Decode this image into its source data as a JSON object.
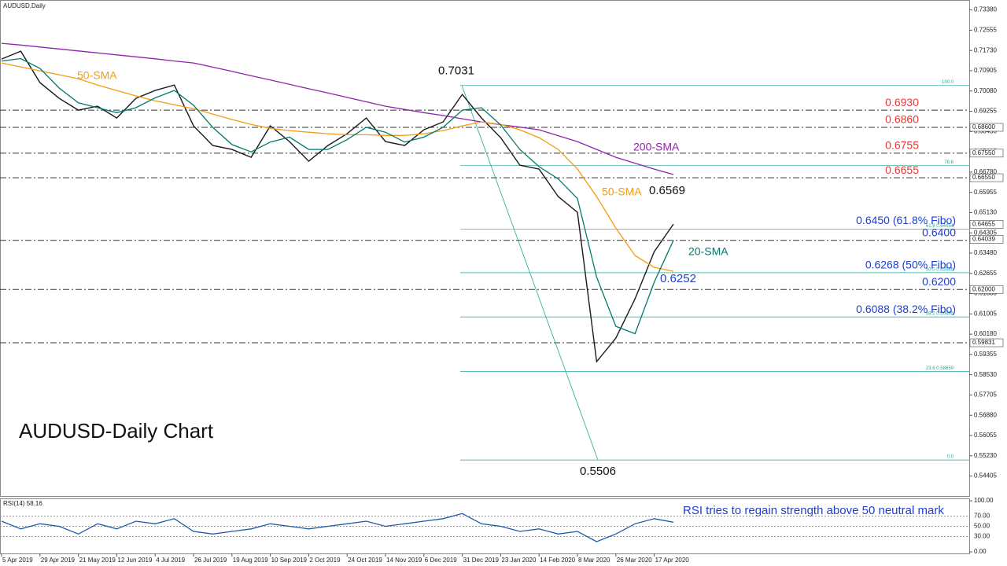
{
  "chart_data": [
    {
      "type": "line",
      "title": "AUDUSD,Daily",
      "subtitle": "AUDUSD-Daily Chart",
      "categories": [
        "5 Apr 2019",
        null,
        "29 Apr 2019",
        null,
        "21 May 2019",
        null,
        "12 Jun 2019",
        null,
        "4 Jul 2019",
        null,
        "26 Jul 2019",
        null,
        "19 Aug 2019",
        null,
        "10 Sep 2019",
        null,
        "2 Oct 2019",
        null,
        "24 Oct 2019",
        null,
        "14 Nov 2019",
        null,
        "6 Dec 2019",
        null,
        "31 Dec 2019",
        null,
        "23 Jan 2020",
        null,
        "14 Feb 2020",
        null,
        "8 Mar 2020",
        null,
        "26 Mar 2020",
        null,
        "17 Apr 2020",
        null
      ],
      "series": [
        {
          "color": "#1a1a1a",
          "values": [
            0.7138,
            0.717,
            0.7042,
            0.6978,
            0.693,
            0.6946,
            0.6898,
            0.6978,
            0.701,
            0.7032,
            0.6866,
            0.6786,
            0.677,
            0.6738,
            0.6866,
            0.6802,
            0.6722,
            0.6786,
            0.6834,
            0.6898,
            0.6802,
            0.6786,
            0.685,
            0.6882,
            0.6994,
            0.6898,
            0.6818,
            0.6706,
            0.669,
            0.6578,
            0.6514,
            0.5906,
            0.6002,
            0.6162,
            0.6354,
            0.6466
          ]
        },
        {
          "name": "200-SMA",
          "color": "#8e24aa",
          "values": [
            0.7202,
            0.7195,
            0.7187,
            0.7179,
            0.7171,
            0.7163,
            0.7155,
            0.7147,
            0.7139,
            0.713,
            0.7122,
            0.7105,
            0.7088,
            0.707,
            0.7053,
            0.7035,
            0.7017,
            0.7,
            0.6982,
            0.6964,
            0.6946,
            0.6933,
            0.692,
            0.6908,
            0.6895,
            0.6882,
            0.6871,
            0.6861,
            0.685,
            0.6826,
            0.6802,
            0.677,
            0.6738,
            0.6714,
            0.669,
            0.6668
          ]
        },
        {
          "name": "50-SMA",
          "color": "#f39c12",
          "values": [
            0.7122,
            0.7106,
            0.709,
            0.7074,
            0.7058,
            0.7032,
            0.701,
            0.6988,
            0.6968,
            0.6952,
            0.6936,
            0.6914,
            0.6892,
            0.6872,
            0.6856,
            0.6847,
            0.684,
            0.6834,
            0.683,
            0.683,
            0.6827,
            0.6827,
            0.6834,
            0.6847,
            0.6866,
            0.6882,
            0.6872,
            0.685,
            0.6818,
            0.677,
            0.669,
            0.6578,
            0.645,
            0.6338,
            0.629,
            0.6274
          ]
        },
        {
          "name": "20-SMA",
          "color": "#00796b",
          "values": [
            0.713,
            0.714,
            0.71,
            0.702,
            0.696,
            0.694,
            0.692,
            0.694,
            0.698,
            0.701,
            0.695,
            0.686,
            0.679,
            0.676,
            0.68,
            0.682,
            0.677,
            0.677,
            0.681,
            0.686,
            0.684,
            0.68,
            0.682,
            0.686,
            0.693,
            0.694,
            0.687,
            0.677,
            0.67,
            0.665,
            0.657,
            0.625,
            0.605,
            0.602,
            0.623,
            0.64
          ]
        }
      ],
      "ylim": [
        0.5436,
        0.734
      ],
      "yticks": [
        {
          "value": 0.54405,
          "label": "0.54405"
        },
        {
          "value": 0.5523,
          "label": "0.55230"
        },
        {
          "value": 0.56055,
          "label": "0.56055"
        },
        {
          "value": 0.5688,
          "label": "0.56880"
        },
        {
          "value": 0.57705,
          "label": "0.57705"
        },
        {
          "value": 0.5853,
          "label": "0.58530"
        },
        {
          "value": 0.59355,
          "label": "0.59355"
        },
        {
          "value": 0.6018,
          "label": "0.60180"
        },
        {
          "value": 0.61005,
          "label": "0.61005"
        },
        {
          "value": 0.6183,
          "label": "0.61830"
        },
        {
          "value": 0.62655,
          "label": "0.62655"
        },
        {
          "value": 0.6348,
          "label": "0.63480"
        },
        {
          "value": 0.64305,
          "label": "0.64305"
        },
        {
          "value": 0.6513,
          "label": "0.65130"
        },
        {
          "value": 0.65955,
          "label": "0.65955"
        },
        {
          "value": 0.6678,
          "label": "0.66780"
        },
        {
          "value": 0.67605,
          "label": "0.67605"
        },
        {
          "value": 0.6843,
          "label": "0.68430"
        },
        {
          "value": 0.69255,
          "label": "0.69255"
        },
        {
          "value": 0.7008,
          "label": "0.70080"
        },
        {
          "value": 0.70905,
          "label": "0.70905"
        },
        {
          "value": 0.7173,
          "label": "0.71730"
        },
        {
          "value": 0.72555,
          "label": "0.72555"
        },
        {
          "value": 0.7338,
          "label": "0.73380"
        }
      ],
      "price_tags": [
        {
          "value": 0.686,
          "label": "0.68600"
        },
        {
          "value": 0.6755,
          "label": "0.67550"
        },
        {
          "value": 0.6655,
          "label": "0.66550"
        },
        {
          "value": 0.64655,
          "label": "0.64655"
        },
        {
          "value": 0.64039,
          "label": "0.64039"
        },
        {
          "value": 0.62,
          "label": "0.62000"
        },
        {
          "value": 0.59831,
          "label": "0.59831"
        }
      ],
      "dashed_levels": [
        0.693,
        0.686,
        0.6755,
        0.6655,
        0.64,
        0.62,
        0.59831
      ],
      "level_labels": [
        {
          "value": 0.693,
          "label": "0.6930",
          "color": "#e53935"
        },
        {
          "value": 0.686,
          "label": "0.6860",
          "color": "#e53935"
        },
        {
          "value": 0.6755,
          "label": "0.6755",
          "color": "#e53935"
        },
        {
          "value": 0.6655,
          "label": "0.6655",
          "color": "#e53935"
        },
        {
          "value": 0.645,
          "label": "0.6450 (61.8% Fibo)",
          "color": "#1e40d0"
        },
        {
          "value": 0.64,
          "label": "0.6400",
          "color": "#1e40d0"
        },
        {
          "value": 0.6268,
          "label": "0.6268 (50% Fibo)",
          "color": "#1e40d0"
        },
        {
          "value": 0.62,
          "label": "0.6200",
          "color": "#1e40d0"
        },
        {
          "value": 0.6088,
          "label": "0.6088 (38.2% Fibo)",
          "color": "#1e40d0"
        }
      ],
      "fib_levels": [
        {
          "value": 0.7031,
          "label": "100.0"
        },
        {
          "value": 0.6705,
          "label": "78.6"
        },
        {
          "value": 0.64454,
          "label": "61.8 0.64454"
        },
        {
          "value": 0.62685,
          "label": "50.0 0.62685"
        },
        {
          "value": 0.60885,
          "label": "38.2 0.60885"
        },
        {
          "value": 0.58659,
          "label": "23.6 0.58659"
        },
        {
          "value": 0.5506,
          "label": "0.0"
        }
      ],
      "fib_color": "#26a69a",
      "annotations": [
        {
          "value": 0.7031,
          "label": "0.7031",
          "color": "#111"
        },
        {
          "value": 0.6569,
          "label": "0.6569",
          "color": "#111"
        },
        {
          "value": 0.6252,
          "label": "0.6252",
          "color": "#1e40d0"
        },
        {
          "value": 0.5506,
          "label": "0.5506",
          "color": "#111"
        }
      ]
    },
    {
      "type": "line",
      "title": "RSI(14) 58.16",
      "annotation": "RSI tries to regain strength above 50 neutral mark",
      "series": [
        {
          "color": "#1e5aa8",
          "values": [
            60,
            45,
            55,
            50,
            35,
            55,
            45,
            60,
            55,
            65,
            40,
            35,
            40,
            45,
            55,
            50,
            45,
            50,
            55,
            60,
            50,
            55,
            60,
            65,
            75,
            55,
            50,
            40,
            45,
            35,
            40,
            20,
            35,
            55,
            65,
            58
          ]
        }
      ],
      "ylim": [
        0,
        100
      ],
      "yticks": [
        {
          "value": 100,
          "label": "100.00"
        },
        {
          "value": 70,
          "label": "70.00"
        },
        {
          "value": 50,
          "label": "50.00"
        },
        {
          "value": 30,
          "label": "30.00"
        },
        {
          "value": 0,
          "label": "0.00"
        }
      ]
    }
  ]
}
